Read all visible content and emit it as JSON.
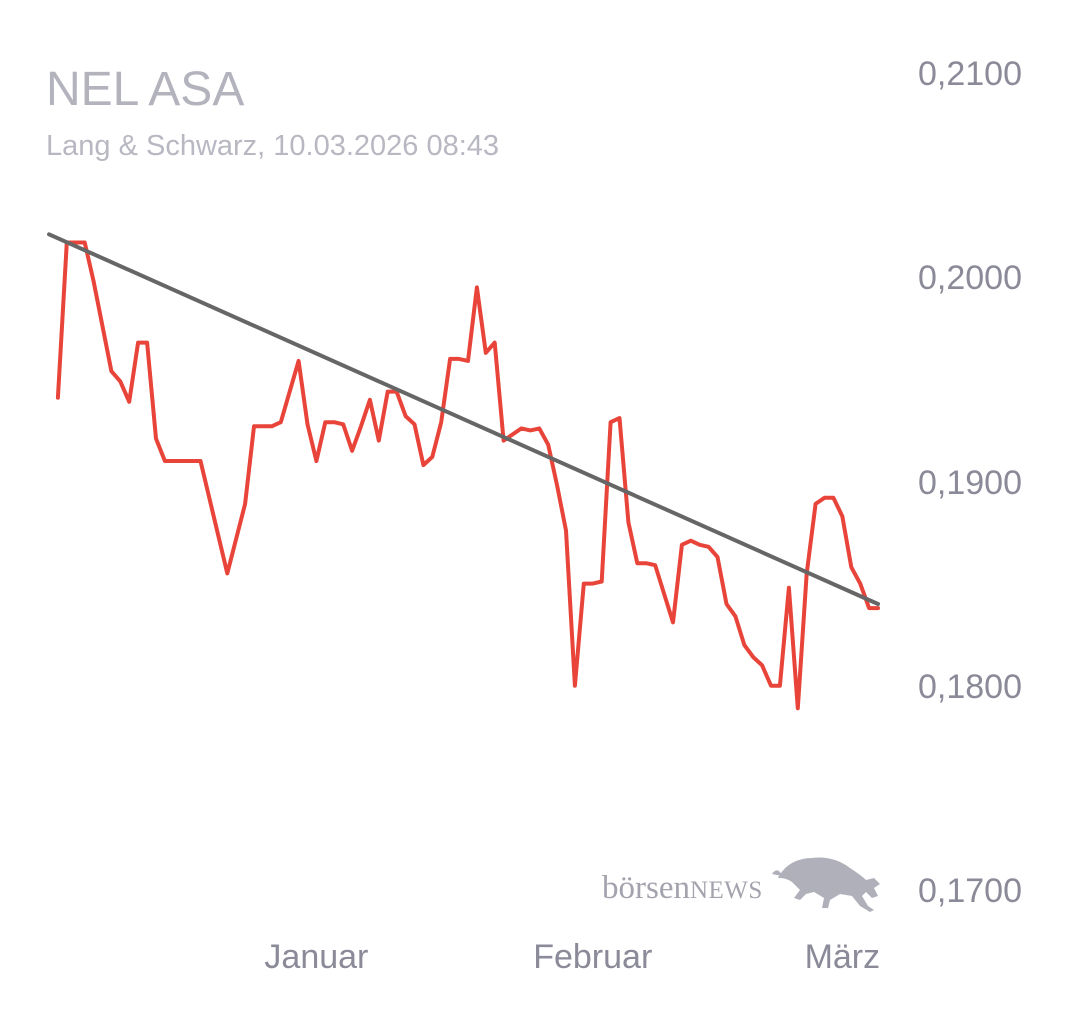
{
  "header": {
    "title": "NEL ASA",
    "subtitle": "Lang & Schwarz, 10.03.2026 08:43"
  },
  "logo": {
    "brand_lower": "börsen",
    "brand_upper": "NEWS",
    "icon": "bull-icon"
  },
  "colors": {
    "price_line": "#e8443a",
    "trend_line": "#666666",
    "axis_text": "#8a8a98",
    "title_text": "#b3b3bd"
  },
  "chart_data": {
    "type": "line",
    "title": "NEL ASA",
    "y_tick_labels": [
      "0,2100",
      "0,2000",
      "0,1900",
      "0,1800",
      "0,1700"
    ],
    "y_ticks": [
      0.21,
      0.2,
      0.19,
      0.18,
      0.17
    ],
    "ylim": [
      0.17,
      0.21
    ],
    "x_tick_labels": [
      "Januar",
      "Februar",
      "März"
    ],
    "x_ticks": [
      "2026-01-01",
      "2026-02-01",
      "2026-03-01"
    ],
    "xlim": [
      "2025-12-07",
      "2026-03-10"
    ],
    "grid": false,
    "series": [
      {
        "x": [
          "2025-12-08",
          "2025-12-09",
          "2025-12-10",
          "2025-12-11",
          "2025-12-12",
          "2025-12-14",
          "2025-12-15",
          "2025-12-16",
          "2025-12-17",
          "2025-12-18",
          "2025-12-19",
          "2025-12-20",
          "2025-12-22",
          "2025-12-23",
          "2025-12-24",
          "2025-12-27",
          "2025-12-29",
          "2025-12-30",
          "2026-01-01",
          "2026-01-02",
          "2026-01-04",
          "2026-01-05",
          "2026-01-06",
          "2026-01-07",
          "2026-01-08",
          "2026-01-09",
          "2026-01-10",
          "2026-01-11",
          "2026-01-12",
          "2026-01-13",
          "2026-01-14",
          "2026-01-15",
          "2026-01-16",
          "2026-01-17",
          "2026-01-18",
          "2026-01-19",
          "2026-01-20",
          "2026-01-21",
          "2026-01-22",
          "2026-01-23",
          "2026-01-24",
          "2026-01-25",
          "2026-01-26",
          "2026-01-27",
          "2026-01-29",
          "2026-01-30",
          "2026-01-31",
          "2026-02-01",
          "2026-02-02",
          "2026-02-03",
          "2026-02-04",
          "2026-02-05",
          "2026-02-06",
          "2026-02-07",
          "2026-02-08",
          "2026-02-09",
          "2026-02-10",
          "2026-02-11",
          "2026-02-12",
          "2026-02-13",
          "2026-02-14",
          "2026-02-15",
          "2026-02-16",
          "2026-02-17",
          "2026-02-18",
          "2026-02-19",
          "2026-02-20",
          "2026-02-21",
          "2026-02-22",
          "2026-02-23",
          "2026-02-24",
          "2026-02-25",
          "2026-02-26",
          "2026-02-27",
          "2026-02-28",
          "2026-03-01",
          "2026-03-02",
          "2026-03-03",
          "2026-03-04",
          "2026-03-05",
          "2026-03-06",
          "2026-03-07",
          "2026-03-08",
          "2026-03-09",
          "2026-03-10"
        ],
        "values": [
          0.1942,
          0.2018,
          0.2018,
          0.2018,
          0.1999,
          0.1955,
          0.195,
          0.194,
          0.1969,
          0.1969,
          0.1922,
          0.1911,
          0.1911,
          0.1911,
          0.1911,
          0.1856,
          0.189,
          0.1928,
          0.1928,
          0.193,
          0.196,
          0.1929,
          0.1911,
          0.193,
          0.193,
          0.1929,
          0.1916,
          0.1928,
          0.1941,
          0.1921,
          0.1945,
          0.1945,
          0.1933,
          0.1929,
          0.1909,
          0.1913,
          0.193,
          0.1961,
          0.1961,
          0.196,
          0.1996,
          0.1964,
          0.1969,
          0.1921,
          0.1927,
          0.1926,
          0.1927,
          0.1919,
          0.1899,
          0.1877,
          0.1801,
          0.1851,
          0.1851,
          0.1852,
          0.193,
          0.1932,
          0.1881,
          0.1861,
          0.1861,
          0.186,
          0.1846,
          0.1832,
          0.187,
          0.1872,
          0.187,
          0.1869,
          0.1864,
          0.1841,
          0.1835,
          0.1821,
          0.1815,
          0.1811,
          0.1801,
          0.1801,
          0.1849,
          0.179,
          0.1856,
          0.189,
          0.1893,
          0.1893,
          0.1884,
          0.1859,
          0.1851,
          0.1839,
          0.1839
        ]
      },
      {
        "x": [
          "2025-12-07",
          "2026-03-10"
        ],
        "values": [
          0.2022,
          0.1841
        ]
      }
    ]
  }
}
